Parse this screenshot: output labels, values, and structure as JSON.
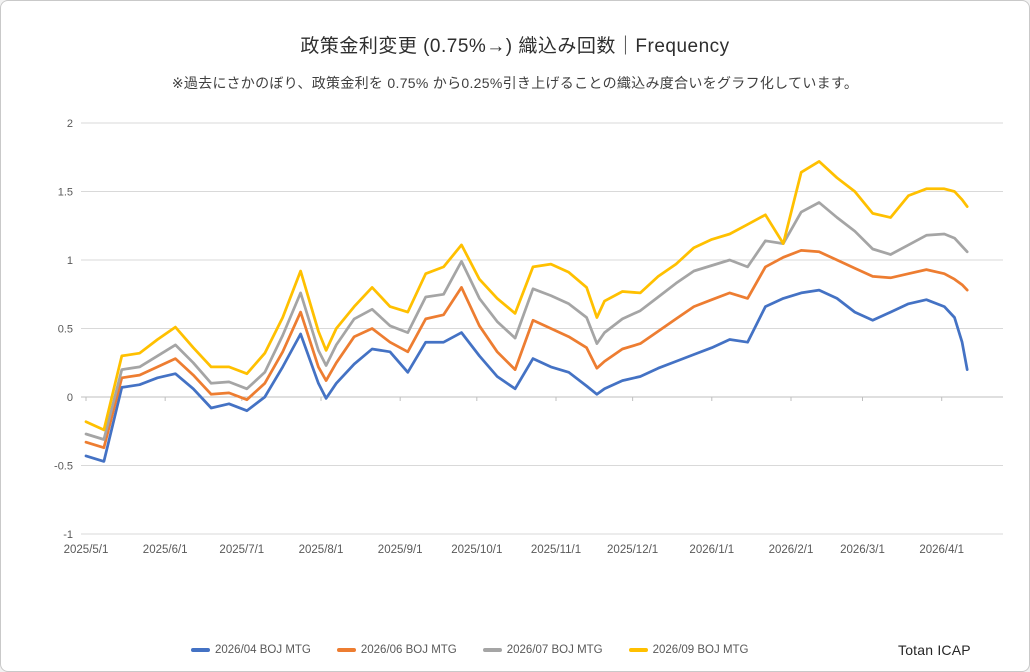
{
  "brand": "Totan ICAP",
  "chart_data": {
    "type": "line",
    "title": "政策金利変更 (0.75%→) 織込み回数｜Frequency",
    "subtitle": "※過去にさかのぼり、政策金利を 0.75% から0.25%引き上げることの織込み度合いをグラフ化しています。",
    "ylim": [
      -1,
      2
    ],
    "xlim_days": [
      0,
      359
    ],
    "grid": "horizontal",
    "legend_position": "bottom",
    "style": {
      "grid_color": "#d9d9d9",
      "axis_color": "#bfbfbf",
      "tick_label_color": "#595959",
      "line_width": 2.75
    },
    "yticks": [
      {
        "label": "2",
        "v": 2
      },
      {
        "label": "1.5",
        "v": 1.5
      },
      {
        "label": "1",
        "v": 1
      },
      {
        "label": "0.5",
        "v": 0.5
      },
      {
        "label": "0",
        "v": 0
      },
      {
        "label": "-0.5",
        "v": -0.5
      },
      {
        "label": "-1",
        "v": -1
      }
    ],
    "xticks": [
      {
        "label": "2025/5/1",
        "t": 0
      },
      {
        "label": "2025/6/1",
        "t": 31
      },
      {
        "label": "2025/7/1",
        "t": 61
      },
      {
        "label": "2025/8/1",
        "t": 92
      },
      {
        "label": "2025/9/1",
        "t": 123
      },
      {
        "label": "2025/10/1",
        "t": 153
      },
      {
        "label": "2025/11/1",
        "t": 184
      },
      {
        "label": "2025/12/1",
        "t": 214
      },
      {
        "label": "2026/1/1",
        "t": 245
      },
      {
        "label": "2026/2/1",
        "t": 276
      },
      {
        "label": "2026/3/1",
        "t": 304
      },
      {
        "label": "2026/4/1",
        "t": 335
      }
    ],
    "x_dates": [
      "2025/5/1",
      "2025/5/8",
      "2025/5/15",
      "2025/5/22",
      "2025/5/29",
      "2025/6/5",
      "2025/6/12",
      "2025/6/19",
      "2025/6/26",
      "2025/7/3",
      "2025/7/10",
      "2025/7/17",
      "2025/7/24",
      "2025/7/31",
      "2025/8/3",
      "2025/8/7",
      "2025/8/14",
      "2025/8/21",
      "2025/8/28",
      "2025/9/4",
      "2025/9/11",
      "2025/9/18",
      "2025/9/25",
      "2025/10/2",
      "2025/10/9",
      "2025/10/16",
      "2025/10/23",
      "2025/10/30",
      "2025/11/6",
      "2025/11/13",
      "2025/11/17",
      "2025/11/20",
      "2025/11/27",
      "2025/12/4",
      "2025/12/11",
      "2025/12/18",
      "2025/12/25",
      "2026/1/1",
      "2026/1/8",
      "2026/1/15",
      "2026/1/22",
      "2026/1/29",
      "2026/2/5",
      "2026/2/12",
      "2026/2/19",
      "2026/2/26",
      "2026/3/5",
      "2026/3/12",
      "2026/3/19",
      "2026/3/26",
      "2026/4/2",
      "2026/4/6",
      "2026/4/9",
      "2026/4/11"
    ],
    "x_day_offsets": [
      0,
      7,
      14,
      21,
      28,
      35,
      42,
      49,
      56,
      63,
      70,
      77,
      84,
      91,
      94,
      98,
      105,
      112,
      119,
      126,
      133,
      140,
      147,
      154,
      161,
      168,
      175,
      182,
      189,
      196,
      200,
      203,
      210,
      217,
      224,
      231,
      238,
      245,
      252,
      259,
      266,
      273,
      280,
      287,
      294,
      301,
      308,
      315,
      322,
      329,
      336,
      340,
      343,
      345
    ],
    "series": [
      {
        "name": "2026/04 BOJ MTG",
        "color": "#4472C4",
        "values": [
          -0.43,
          -0.47,
          0.07,
          0.09,
          0.14,
          0.17,
          0.06,
          -0.08,
          -0.05,
          -0.1,
          0.0,
          0.22,
          0.46,
          0.1,
          -0.01,
          0.1,
          0.24,
          0.35,
          0.33,
          0.18,
          0.4,
          0.4,
          0.47,
          0.3,
          0.15,
          0.06,
          0.28,
          0.22,
          0.18,
          0.08,
          0.02,
          0.06,
          0.12,
          0.15,
          0.21,
          0.26,
          0.31,
          0.36,
          0.42,
          0.4,
          0.66,
          0.72,
          0.76,
          0.78,
          0.72,
          0.62,
          0.56,
          0.62,
          0.68,
          0.71,
          0.66,
          0.58,
          0.4,
          0.2
        ]
      },
      {
        "name": "2026/06 BOJ MTG",
        "color": "#ED7D31",
        "values": [
          -0.33,
          -0.37,
          0.14,
          0.16,
          0.22,
          0.28,
          0.16,
          0.02,
          0.03,
          -0.02,
          0.1,
          0.33,
          0.62,
          0.22,
          0.12,
          0.25,
          0.44,
          0.5,
          0.4,
          0.33,
          0.57,
          0.6,
          0.8,
          0.52,
          0.33,
          0.2,
          0.56,
          0.5,
          0.44,
          0.36,
          0.21,
          0.26,
          0.35,
          0.39,
          0.48,
          0.57,
          0.66,
          0.71,
          0.76,
          0.72,
          0.95,
          1.02,
          1.07,
          1.06,
          1.0,
          0.94,
          0.88,
          0.87,
          0.9,
          0.93,
          0.9,
          0.86,
          0.82,
          0.78
        ]
      },
      {
        "name": "2026/07 BOJ MTG",
        "color": "#A5A5A5",
        "values": [
          -0.27,
          -0.31,
          0.2,
          0.22,
          0.3,
          0.38,
          0.25,
          0.1,
          0.11,
          0.06,
          0.18,
          0.45,
          0.76,
          0.34,
          0.23,
          0.38,
          0.57,
          0.64,
          0.52,
          0.47,
          0.73,
          0.75,
          0.99,
          0.72,
          0.55,
          0.43,
          0.79,
          0.74,
          0.68,
          0.58,
          0.39,
          0.47,
          0.57,
          0.63,
          0.73,
          0.83,
          0.92,
          0.96,
          1.0,
          0.95,
          1.14,
          1.12,
          1.35,
          1.42,
          1.31,
          1.21,
          1.08,
          1.04,
          1.11,
          1.18,
          1.19,
          1.16,
          1.1,
          1.06
        ]
      },
      {
        "name": "2026/09 BOJ MTG",
        "color": "#FFC000",
        "values": [
          -0.18,
          -0.24,
          0.3,
          0.32,
          0.42,
          0.51,
          0.36,
          0.22,
          0.22,
          0.17,
          0.32,
          0.58,
          0.92,
          0.48,
          0.34,
          0.5,
          0.66,
          0.8,
          0.66,
          0.62,
          0.9,
          0.95,
          1.11,
          0.86,
          0.72,
          0.61,
          0.95,
          0.97,
          0.91,
          0.8,
          0.58,
          0.7,
          0.77,
          0.76,
          0.88,
          0.97,
          1.09,
          1.15,
          1.19,
          1.26,
          1.33,
          1.12,
          1.64,
          1.72,
          1.6,
          1.5,
          1.34,
          1.31,
          1.47,
          1.52,
          1.52,
          1.5,
          1.44,
          1.39
        ]
      }
    ]
  }
}
